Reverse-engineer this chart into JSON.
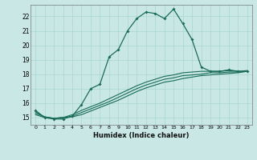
{
  "xlabel": "Humidex (Indice chaleur)",
  "xlim": [
    -0.5,
    23.5
  ],
  "ylim": [
    14.5,
    22.8
  ],
  "xticks": [
    0,
    1,
    2,
    3,
    4,
    5,
    6,
    7,
    8,
    9,
    10,
    11,
    12,
    13,
    14,
    15,
    16,
    17,
    18,
    19,
    20,
    21,
    22,
    23
  ],
  "yticks": [
    15,
    16,
    17,
    18,
    19,
    20,
    21,
    22
  ],
  "background_color": "#c9e8e5",
  "grid_color": "#a8d4d0",
  "line_color": "#1a6b5a",
  "line1_x": [
    0,
    1,
    2,
    3,
    4,
    5,
    6,
    7,
    8,
    9,
    10,
    11,
    12,
    13,
    14,
    15,
    16,
    17,
    18,
    19,
    20,
    21,
    22,
    23
  ],
  "line1_y": [
    15.5,
    15.0,
    14.9,
    14.9,
    15.1,
    15.9,
    17.0,
    17.3,
    19.2,
    19.7,
    21.0,
    21.85,
    22.3,
    22.2,
    21.85,
    22.5,
    21.5,
    20.4,
    18.5,
    18.2,
    18.2,
    18.3,
    18.2,
    18.2
  ],
  "line2_x": [
    0,
    1,
    2,
    3,
    4,
    5,
    6,
    7,
    8,
    9,
    10,
    11,
    12,
    13,
    14,
    15,
    16,
    17,
    18,
    19,
    20,
    21,
    22,
    23
  ],
  "line2_y": [
    15.4,
    15.05,
    14.95,
    15.0,
    15.2,
    15.5,
    15.75,
    16.0,
    16.3,
    16.6,
    16.9,
    17.2,
    17.45,
    17.65,
    17.85,
    17.95,
    18.1,
    18.15,
    18.2,
    18.2,
    18.2,
    18.25,
    18.2,
    18.25
  ],
  "line3_x": [
    0,
    1,
    2,
    3,
    4,
    5,
    6,
    7,
    8,
    9,
    10,
    11,
    12,
    13,
    14,
    15,
    16,
    17,
    18,
    19,
    20,
    21,
    22,
    23
  ],
  "line3_y": [
    15.3,
    15.05,
    14.95,
    15.0,
    15.1,
    15.35,
    15.6,
    15.85,
    16.1,
    16.4,
    16.7,
    17.0,
    17.25,
    17.45,
    17.65,
    17.75,
    17.9,
    17.95,
    18.0,
    18.1,
    18.1,
    18.15,
    18.15,
    18.2
  ],
  "line4_x": [
    0,
    1,
    2,
    3,
    4,
    5,
    6,
    7,
    8,
    9,
    10,
    11,
    12,
    13,
    14,
    15,
    16,
    17,
    18,
    19,
    20,
    21,
    22,
    23
  ],
  "line4_y": [
    15.2,
    15.0,
    14.95,
    15.0,
    15.05,
    15.2,
    15.45,
    15.7,
    15.95,
    16.2,
    16.5,
    16.8,
    17.05,
    17.25,
    17.45,
    17.55,
    17.7,
    17.8,
    17.9,
    17.95,
    18.0,
    18.05,
    18.1,
    18.2
  ]
}
